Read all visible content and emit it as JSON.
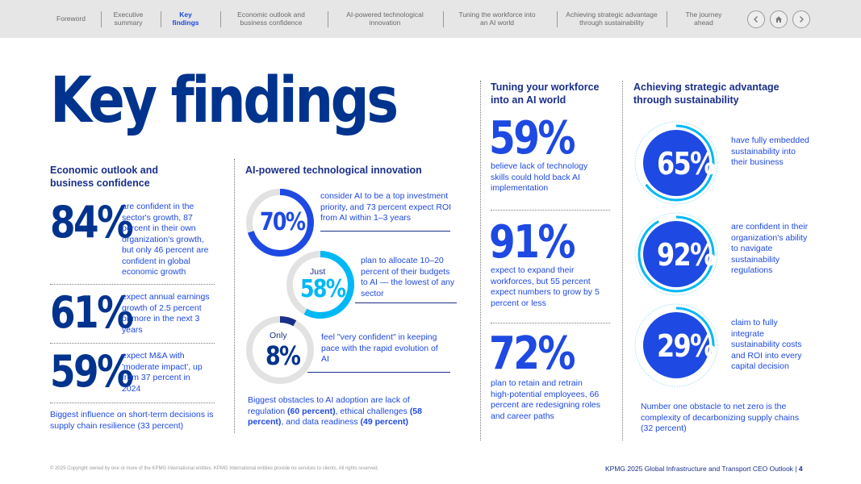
{
  "nav": {
    "items": [
      {
        "label": "Foreword",
        "active": false
      },
      {
        "label": "Executive\nsummary",
        "active": false
      },
      {
        "label": "Key\nfindings",
        "active": true
      },
      {
        "label": "Economic outlook and\nbusiness confidence",
        "active": false
      },
      {
        "label": "AI-powered technological\ninnovation",
        "active": false
      },
      {
        "label": "Tuning the workforce into\nan AI world",
        "active": false
      },
      {
        "label": "Achieving strategic advantage\nthrough sustainability",
        "active": false
      },
      {
        "label": "The journey\nahead",
        "active": false
      }
    ],
    "prev_icon": "chevron-left-icon",
    "home_icon": "home-icon",
    "next_icon": "chevron-right-icon"
  },
  "title": "Key findings",
  "economic": {
    "heading": "Economic outlook and business confidence",
    "stats": [
      {
        "value": "84%",
        "text": "are confident in the sector's growth, 87 percent in their own organization's growth, but only 46 percent are confident in global economic growth"
      },
      {
        "value": "61%",
        "text": "expect annual earnings growth of 2.5 percent or more in the next 3 years"
      },
      {
        "value": "59%",
        "text": "expect M&A with 'moderate impact', up from 37 percent in 2024"
      }
    ],
    "footer": "Biggest influence on short-term decisions is supply chain resilience (33 percent)"
  },
  "ai": {
    "heading": "AI-powered technological innovation",
    "stats": [
      {
        "prefix": "",
        "value": "70%",
        "fraction": 0.7,
        "text": "consider AI to be a top investment priority, and 73 percent expect ROI from AI within 1–3 years"
      },
      {
        "prefix": "Just",
        "value": "58%",
        "fraction": 0.58,
        "text": "plan to allocate 10–20 percent of their budgets to AI — the lowest of any sector"
      },
      {
        "prefix": "Only",
        "value": "8%",
        "fraction": 0.08,
        "text": "feel \"very confident\" in keeping pace with the rapid evolution of AI"
      }
    ],
    "footer_pre": "Biggest obstacles to AI adoption are lack of regulation ",
    "footer_b1": "(60 percent)",
    "footer_mid1": ", ethical challenges ",
    "footer_b2": "(58 percent)",
    "footer_mid2": ", and data readiness ",
    "footer_b3": "(49 percent)"
  },
  "workforce": {
    "heading": "Tuning your workforce into an AI world",
    "stats": [
      {
        "value": "59%",
        "text": "believe lack of technology skills could hold back AI implementation"
      },
      {
        "value": "91%",
        "text": "expect to expand their workforces, but 55 percent expect numbers to grow by 5 percent or less"
      },
      {
        "value": "72%",
        "text": "plan to retain and retrain high-potential employees, 66 percent are redesigning roles and career paths"
      }
    ]
  },
  "sustainability": {
    "heading": "Achieving strategic advantage through sustainability",
    "stats": [
      {
        "value": "65%",
        "text": "have fully embedded sustainability into their business"
      },
      {
        "value": "92%",
        "text": "are confident in their organization's ability to navigate sustainability regulations"
      },
      {
        "value": "29%",
        "text": "claim to fully integrate sustainability costs and ROI into every capital decision"
      }
    ],
    "footer": "Number one obstacle to net zero is the complexity of decarbonizing supply chains (32 percent)"
  },
  "footer": {
    "copyright": "© 2025 Copyright owned by one or more of the KPMG International entities. KPMG International entities provide no services to clients. All rights reserved.",
    "publication": "KPMG 2025 Global Infrastructure and Transport CEO Outlook",
    "page": "4"
  },
  "colors": {
    "navy": "#00338d",
    "blue": "#1e49e2",
    "cyan": "#00b8f5",
    "grey": "#e6e6e6"
  }
}
